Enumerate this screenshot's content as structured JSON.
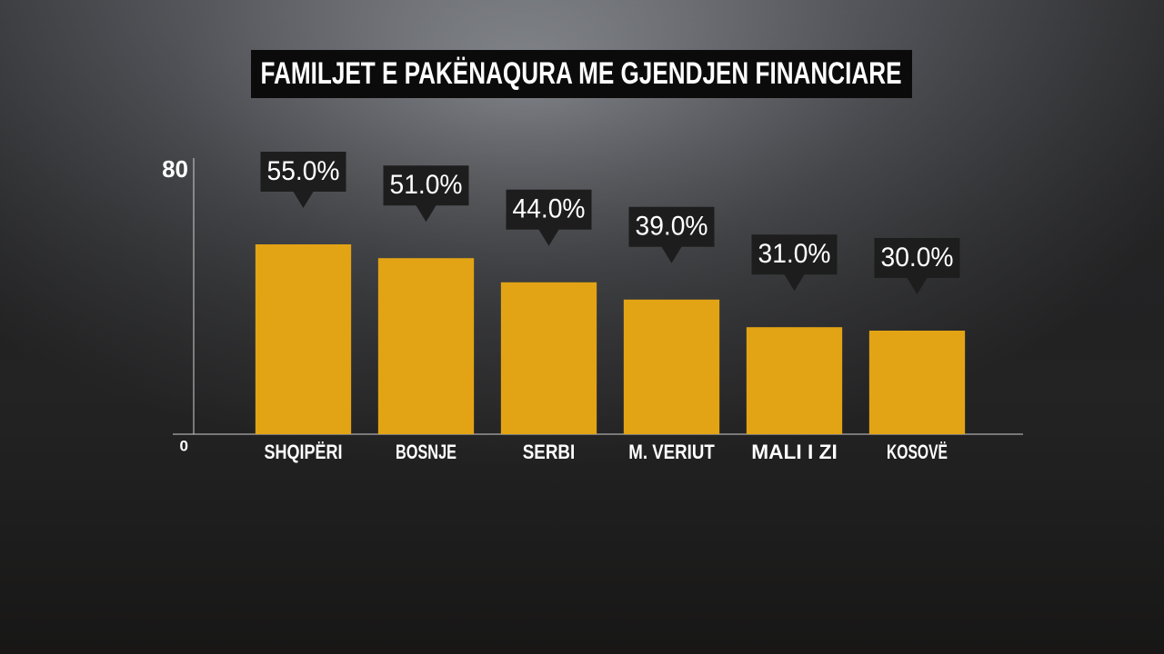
{
  "chart_data": {
    "type": "bar",
    "title": "FAMILJET E PAKËNAQURA ME GJENDJEN FINANCIARE",
    "categories": [
      "SHQIPËRI",
      "BOSNJE",
      "SERBI",
      "M. VERIUT",
      "MALI I ZI",
      "KOSOVË"
    ],
    "values": [
      55,
      51,
      44,
      39,
      31,
      30
    ],
    "value_labels": [
      "55.0%",
      "51.0%",
      "44.0%",
      "39.0%",
      "31.0%",
      "30.0%"
    ],
    "color": "#e2a415",
    "ylim": [
      0,
      80
    ],
    "yticks": [
      0,
      80
    ],
    "grid": false
  }
}
